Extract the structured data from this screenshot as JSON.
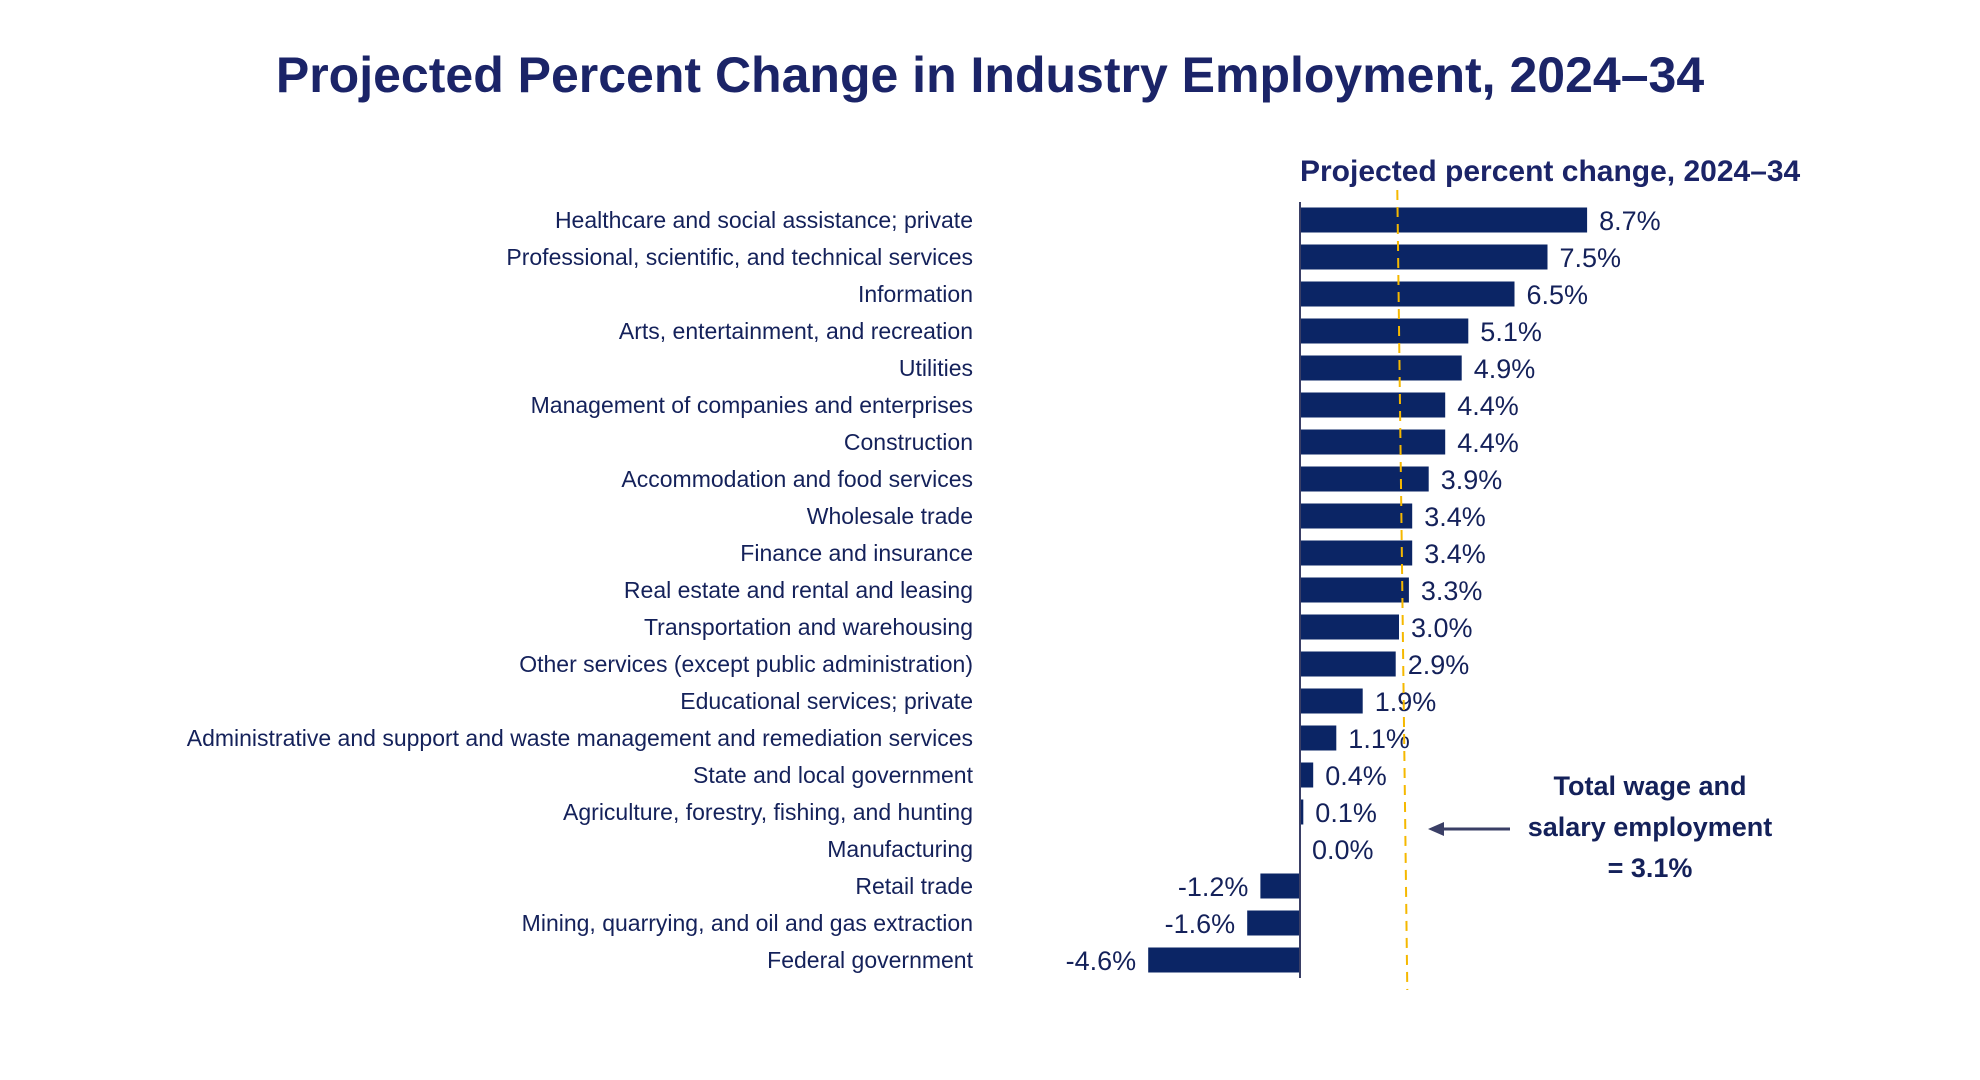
{
  "chart_data": {
    "type": "bar",
    "orientation": "horizontal",
    "title": "Projected Percent Change in Industry Employment, 2024–34",
    "subtitle": "Projected percent change, 2024–34",
    "categories": [
      "Healthcare and social assistance; private",
      "Professional, scientific, and technical services",
      "Information",
      "Arts, entertainment, and recreation",
      "Utilities",
      "Management of companies and enterprises",
      "Construction",
      "Accommodation and food services",
      "Wholesale trade",
      "Finance and insurance",
      "Real estate and rental and leasing",
      "Transportation and warehousing",
      "Other services (except public administration)",
      "Educational services; private",
      "Administrative and support and waste management and remediation services",
      "State and local government",
      "Agriculture, forestry, fishing, and hunting",
      "Manufacturing",
      "Retail trade",
      "Mining, quarrying, and oil and gas extraction",
      "Federal government"
    ],
    "values": [
      8.7,
      7.5,
      6.5,
      5.1,
      4.9,
      4.4,
      4.4,
      3.9,
      3.4,
      3.4,
      3.3,
      3.0,
      2.9,
      1.9,
      1.1,
      0.4,
      0.1,
      0.0,
      -1.2,
      -1.6,
      -4.6
    ],
    "data_labels": [
      "8.7%",
      "7.5%",
      "6.5%",
      "5.1%",
      "4.9%",
      "4.4%",
      "4.4%",
      "3.9%",
      "3.4%",
      "3.4%",
      "3.3%",
      "3.0%",
      "2.9%",
      "1.9%",
      "1.1%",
      "0.4%",
      "0.1%",
      "0.0%",
      "-1.2%",
      "-1.6%",
      "-4.6%"
    ],
    "xlim": [
      -4.6,
      8.7
    ],
    "grid": false,
    "reference_line": {
      "value": 3.1,
      "style": "dashed",
      "annotation": [
        "Total wage and",
        "salary employment",
        "= 3.1%"
      ]
    },
    "colors": {
      "bar": "#0b2565",
      "reference_line": "#f5b800",
      "text": "#14215a",
      "title": "#1b2468"
    }
  }
}
